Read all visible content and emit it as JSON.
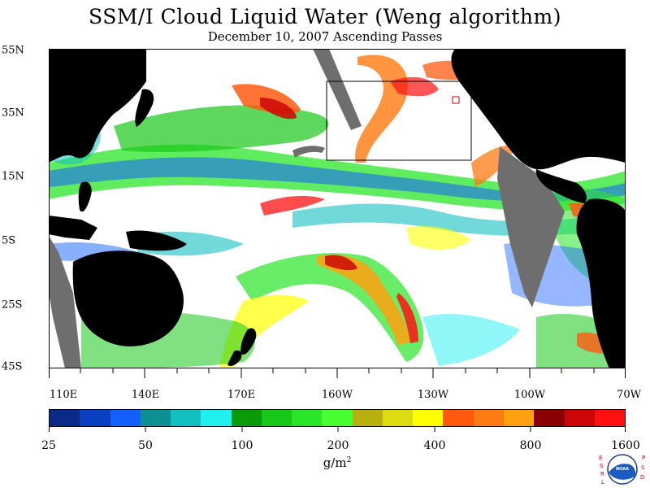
{
  "header": {
    "title": "SSM/I Cloud Liquid Water (Weng algorithm)",
    "subtitle": "December 10, 2007  Ascending Passes"
  },
  "axes": {
    "lat_labels": [
      "55N",
      "35N",
      "15N",
      "5S",
      "25S",
      "45S"
    ],
    "lon_labels": [
      "110E",
      "140E",
      "170E",
      "160W",
      "130W",
      "100W",
      "70W"
    ]
  },
  "colorbar": {
    "tick_labels": [
      "25",
      "50",
      "100",
      "200",
      "400",
      "800",
      "1600"
    ],
    "units_base": "g/m",
    "units_exp": "2",
    "colors": [
      "#0a2a8a",
      "#0a3fc0",
      "#1460ff",
      "#0f9090",
      "#12c0c0",
      "#20f0f0",
      "#0a9a0a",
      "#18c818",
      "#2ae62a",
      "#48ff30",
      "#b8b010",
      "#dcdc10",
      "#ffff00",
      "#ff5a10",
      "#ff7a10",
      "#ffa010",
      "#8a0000",
      "#cc0606",
      "#ff1010"
    ]
  },
  "logo": {
    "left_letters": "ESRL",
    "right_letters": "PSD",
    "center_text": "NOAA"
  }
}
